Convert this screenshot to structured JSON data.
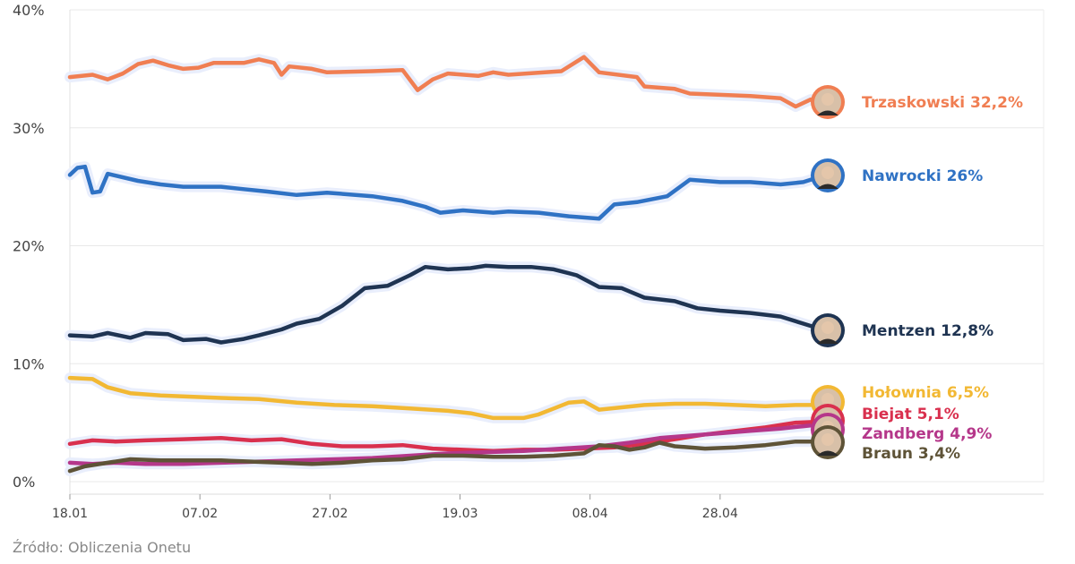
{
  "chart_data": {
    "type": "line",
    "title": "",
    "xlabel": "",
    "ylabel": "",
    "ylim": [
      0,
      40
    ],
    "yticks": [
      "0%",
      "10%",
      "20%",
      "30%",
      "40%"
    ],
    "xticks": [
      "18.01",
      "07.02",
      "27.02",
      "19.03",
      "08.04",
      "28.04"
    ],
    "x_range": [
      "18.01",
      "19.05"
    ],
    "grid": true,
    "source": "Źródło: Obliczenia Onetu",
    "series": [
      {
        "name": "Trzaskowski",
        "label": "Trzaskowski 32,2%",
        "final": 32.2,
        "color": "#F07E52",
        "icon": "portrait-trzaskowski",
        "points": [
          [
            0,
            34.3
          ],
          [
            3,
            34.5
          ],
          [
            5,
            34.1
          ],
          [
            7,
            34.6
          ],
          [
            9,
            35.4
          ],
          [
            11,
            35.7
          ],
          [
            13,
            35.3
          ],
          [
            15,
            35.0
          ],
          [
            17,
            35.1
          ],
          [
            19,
            35.5
          ],
          [
            23,
            35.5
          ],
          [
            25,
            35.8
          ],
          [
            27,
            35.5
          ],
          [
            28,
            34.5
          ],
          [
            29,
            35.2
          ],
          [
            32,
            35.0
          ],
          [
            34,
            34.7
          ],
          [
            40,
            34.8
          ],
          [
            44,
            34.9
          ],
          [
            46,
            33.2
          ],
          [
            48,
            34.1
          ],
          [
            50,
            34.6
          ],
          [
            54,
            34.4
          ],
          [
            56,
            34.7
          ],
          [
            58,
            34.5
          ],
          [
            65,
            34.8
          ],
          [
            68,
            36.0
          ],
          [
            70,
            34.7
          ],
          [
            75,
            34.3
          ],
          [
            76,
            33.5
          ],
          [
            80,
            33.3
          ],
          [
            82,
            32.9
          ],
          [
            90,
            32.7
          ],
          [
            94,
            32.5
          ],
          [
            96,
            31.8
          ],
          [
            98,
            32.4
          ],
          [
            100,
            32.2
          ]
        ]
      },
      {
        "name": "Nawrocki",
        "label": "Nawrocki 26%",
        "final": 26.0,
        "color": "#2F72C4",
        "icon": "portrait-nawrocki",
        "points": [
          [
            0,
            26.0
          ],
          [
            1,
            26.6
          ],
          [
            2,
            26.7
          ],
          [
            3,
            24.5
          ],
          [
            4,
            24.6
          ],
          [
            5,
            26.1
          ],
          [
            9,
            25.5
          ],
          [
            12,
            25.2
          ],
          [
            15,
            25.0
          ],
          [
            20,
            25.0
          ],
          [
            23,
            24.8
          ],
          [
            26,
            24.6
          ],
          [
            30,
            24.3
          ],
          [
            34,
            24.5
          ],
          [
            40,
            24.2
          ],
          [
            44,
            23.8
          ],
          [
            47,
            23.3
          ],
          [
            49,
            22.8
          ],
          [
            52,
            23.0
          ],
          [
            56,
            22.8
          ],
          [
            58,
            22.9
          ],
          [
            62,
            22.8
          ],
          [
            66,
            22.5
          ],
          [
            70,
            22.3
          ],
          [
            72,
            23.5
          ],
          [
            75,
            23.7
          ],
          [
            79,
            24.2
          ],
          [
            82,
            25.6
          ],
          [
            86,
            25.4
          ],
          [
            90,
            25.4
          ],
          [
            94,
            25.2
          ],
          [
            97,
            25.4
          ],
          [
            100,
            26.0
          ]
        ]
      },
      {
        "name": "Mentzen",
        "label": "Mentzen 12,8%",
        "final": 12.8,
        "color": "#1F3452",
        "icon": "portrait-mentzen",
        "points": [
          [
            0,
            12.4
          ],
          [
            3,
            12.3
          ],
          [
            5,
            12.6
          ],
          [
            8,
            12.2
          ],
          [
            10,
            12.6
          ],
          [
            13,
            12.5
          ],
          [
            15,
            12.0
          ],
          [
            18,
            12.1
          ],
          [
            20,
            11.8
          ],
          [
            23,
            12.1
          ],
          [
            25,
            12.4
          ],
          [
            28,
            12.9
          ],
          [
            30,
            13.4
          ],
          [
            33,
            13.8
          ],
          [
            36,
            14.9
          ],
          [
            39,
            16.4
          ],
          [
            42,
            16.6
          ],
          [
            45,
            17.5
          ],
          [
            47,
            18.2
          ],
          [
            50,
            18.0
          ],
          [
            53,
            18.1
          ],
          [
            55,
            18.3
          ],
          [
            58,
            18.2
          ],
          [
            61,
            18.2
          ],
          [
            64,
            18.0
          ],
          [
            67,
            17.5
          ],
          [
            70,
            16.5
          ],
          [
            73,
            16.4
          ],
          [
            76,
            15.6
          ],
          [
            80,
            15.3
          ],
          [
            83,
            14.7
          ],
          [
            86,
            14.5
          ],
          [
            90,
            14.3
          ],
          [
            94,
            14.0
          ],
          [
            97,
            13.4
          ],
          [
            100,
            12.8
          ]
        ]
      },
      {
        "name": "Hołownia",
        "label": "Hołownia 6,5%",
        "final": 6.5,
        "color": "#F2B833",
        "icon": "portrait-holownia",
        "points": [
          [
            0,
            8.8
          ],
          [
            3,
            8.7
          ],
          [
            5,
            8.0
          ],
          [
            8,
            7.5
          ],
          [
            12,
            7.3
          ],
          [
            16,
            7.2
          ],
          [
            20,
            7.1
          ],
          [
            25,
            7.0
          ],
          [
            30,
            6.7
          ],
          [
            35,
            6.5
          ],
          [
            40,
            6.4
          ],
          [
            45,
            6.2
          ],
          [
            50,
            6.0
          ],
          [
            53,
            5.8
          ],
          [
            56,
            5.4
          ],
          [
            60,
            5.4
          ],
          [
            62,
            5.7
          ],
          [
            64,
            6.2
          ],
          [
            66,
            6.7
          ],
          [
            68,
            6.8
          ],
          [
            70,
            6.1
          ],
          [
            73,
            6.3
          ],
          [
            76,
            6.5
          ],
          [
            80,
            6.6
          ],
          [
            84,
            6.6
          ],
          [
            88,
            6.5
          ],
          [
            92,
            6.4
          ],
          [
            96,
            6.5
          ],
          [
            100,
            6.5
          ]
        ]
      },
      {
        "name": "Biejat",
        "label": "Biejat 5,1%",
        "final": 5.1,
        "color": "#D9304E",
        "icon": "portrait-biejat",
        "points": [
          [
            0,
            3.2
          ],
          [
            3,
            3.5
          ],
          [
            6,
            3.4
          ],
          [
            10,
            3.5
          ],
          [
            15,
            3.6
          ],
          [
            20,
            3.7
          ],
          [
            24,
            3.5
          ],
          [
            28,
            3.6
          ],
          [
            32,
            3.2
          ],
          [
            36,
            3.0
          ],
          [
            40,
            3.0
          ],
          [
            44,
            3.1
          ],
          [
            48,
            2.8
          ],
          [
            52,
            2.7
          ],
          [
            56,
            2.6
          ],
          [
            60,
            2.7
          ],
          [
            64,
            2.7
          ],
          [
            68,
            2.8
          ],
          [
            72,
            2.9
          ],
          [
            76,
            3.2
          ],
          [
            80,
            3.6
          ],
          [
            84,
            4.0
          ],
          [
            88,
            4.3
          ],
          [
            92,
            4.6
          ],
          [
            96,
            5.0
          ],
          [
            100,
            5.1
          ]
        ]
      },
      {
        "name": "Zandberg",
        "label": "Zandberg 4,9%",
        "final": 4.9,
        "color": "#B5378A",
        "icon": "portrait-zandberg",
        "points": [
          [
            0,
            1.6
          ],
          [
            3,
            1.5
          ],
          [
            6,
            1.6
          ],
          [
            10,
            1.5
          ],
          [
            15,
            1.5
          ],
          [
            20,
            1.6
          ],
          [
            25,
            1.7
          ],
          [
            30,
            1.8
          ],
          [
            35,
            1.9
          ],
          [
            40,
            2.0
          ],
          [
            45,
            2.2
          ],
          [
            50,
            2.4
          ],
          [
            55,
            2.5
          ],
          [
            60,
            2.6
          ],
          [
            65,
            2.8
          ],
          [
            70,
            3.0
          ],
          [
            74,
            3.3
          ],
          [
            78,
            3.7
          ],
          [
            82,
            3.9
          ],
          [
            86,
            4.1
          ],
          [
            90,
            4.3
          ],
          [
            94,
            4.5
          ],
          [
            97,
            4.7
          ],
          [
            100,
            4.9
          ]
        ]
      },
      {
        "name": "Braun",
        "label": "Braun 3,4%",
        "final": 3.4,
        "color": "#5E5337",
        "icon": "portrait-braun",
        "points": [
          [
            0,
            0.9
          ],
          [
            2,
            1.3
          ],
          [
            5,
            1.6
          ],
          [
            8,
            1.9
          ],
          [
            12,
            1.8
          ],
          [
            16,
            1.8
          ],
          [
            20,
            1.8
          ],
          [
            24,
            1.7
          ],
          [
            28,
            1.6
          ],
          [
            32,
            1.5
          ],
          [
            36,
            1.6
          ],
          [
            40,
            1.8
          ],
          [
            44,
            1.9
          ],
          [
            48,
            2.2
          ],
          [
            52,
            2.2
          ],
          [
            56,
            2.1
          ],
          [
            60,
            2.1
          ],
          [
            64,
            2.2
          ],
          [
            68,
            2.4
          ],
          [
            70,
            3.1
          ],
          [
            72,
            3.0
          ],
          [
            74,
            2.7
          ],
          [
            76,
            2.9
          ],
          [
            78,
            3.3
          ],
          [
            80,
            3.0
          ],
          [
            84,
            2.8
          ],
          [
            88,
            2.9
          ],
          [
            92,
            3.1
          ],
          [
            96,
            3.4
          ],
          [
            100,
            3.4
          ]
        ]
      }
    ]
  }
}
